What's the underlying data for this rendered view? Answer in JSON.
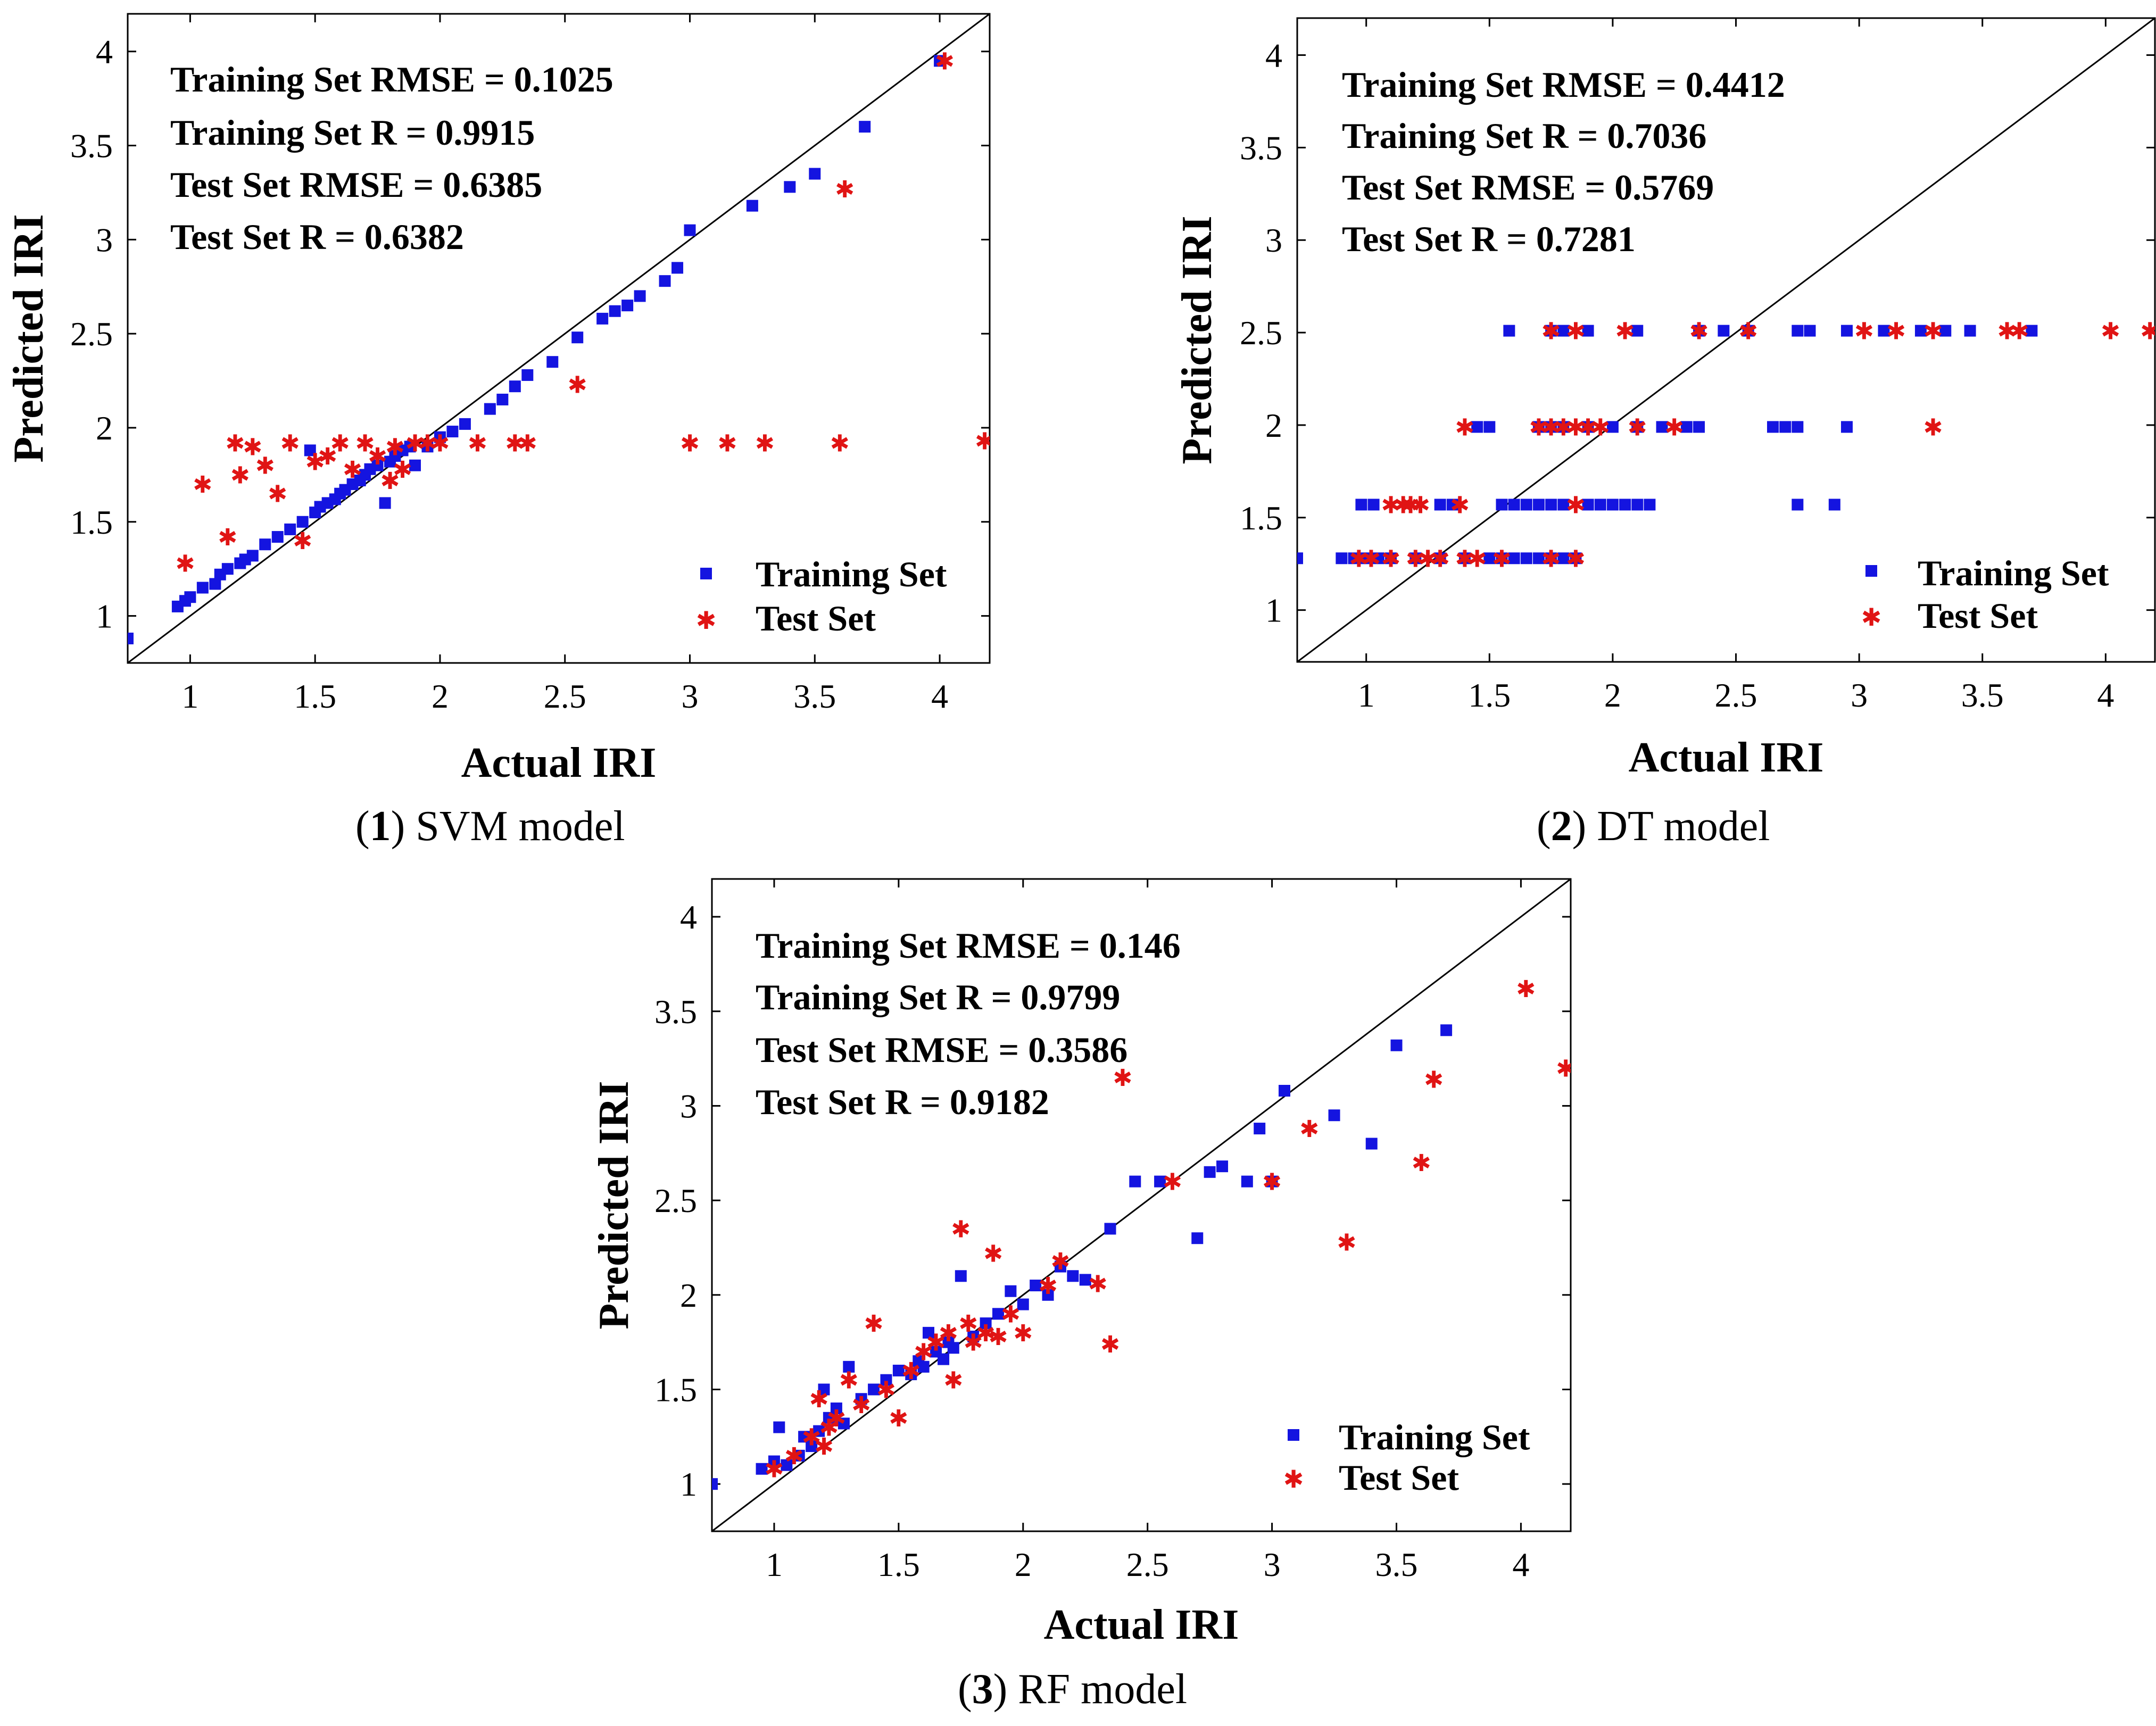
{
  "colors": {
    "training": "#1414e0",
    "test": "#e01414",
    "axis": "#000000"
  },
  "chart_data": [
    {
      "type": "scatter",
      "panel_number": "1",
      "panel_name": "SVM model",
      "xlabel": "Actual IRI",
      "ylabel": "Predicted IRI",
      "xlim": [
        0.75,
        4.2
      ],
      "ylim": [
        0.75,
        4.2
      ],
      "xticks": [
        1,
        1.5,
        2,
        2.5,
        3,
        3.5,
        4
      ],
      "xtick_labels": [
        "1",
        "1.5",
        "2",
        "2.5",
        "3",
        "3.5",
        "4"
      ],
      "yticks": [
        1,
        1.5,
        2,
        2.5,
        3,
        3.5,
        4
      ],
      "ytick_labels": [
        "1",
        "1.5",
        "2",
        "2.5",
        "3",
        "3.5",
        "4"
      ],
      "stats": [
        "Training Set RMSE = 0.1025",
        "Training Set R = 0.9915",
        "Test Set RMSE = 0.6385",
        "Test Set R = 0.6382"
      ],
      "legend": [
        "Training Set",
        "Test Set"
      ],
      "series": [
        {
          "name": "Training Set",
          "marker": "square",
          "x": [
            0.75,
            0.95,
            0.98,
            1.0,
            1.05,
            1.1,
            1.12,
            1.15,
            1.2,
            1.22,
            1.25,
            1.3,
            1.35,
            1.4,
            1.45,
            1.48,
            1.5,
            1.52,
            1.55,
            1.58,
            1.6,
            1.62,
            1.65,
            1.68,
            1.7,
            1.72,
            1.75,
            1.78,
            1.8,
            1.82,
            1.85,
            1.88,
            1.9,
            1.95,
            2.0,
            2.05,
            2.1,
            2.2,
            2.25,
            2.3,
            2.35,
            2.45,
            2.55,
            2.65,
            2.7,
            2.75,
            2.8,
            2.9,
            2.95,
            3.0,
            3.25,
            3.4,
            3.5,
            3.7,
            4.0
          ],
          "y": [
            0.88,
            1.05,
            1.08,
            1.1,
            1.15,
            1.17,
            1.22,
            1.25,
            1.28,
            1.3,
            1.32,
            1.38,
            1.42,
            1.46,
            1.5,
            1.88,
            1.55,
            1.58,
            1.6,
            1.62,
            1.65,
            1.67,
            1.7,
            1.72,
            1.75,
            1.78,
            1.8,
            1.6,
            1.82,
            1.85,
            1.88,
            1.9,
            1.8,
            1.9,
            1.95,
            1.98,
            2.02,
            2.1,
            2.15,
            2.22,
            2.28,
            2.35,
            2.48,
            2.58,
            2.62,
            2.65,
            2.7,
            2.78,
            2.85,
            3.05,
            3.18,
            3.28,
            3.35,
            3.6,
            3.95
          ]
        },
        {
          "name": "Test Set",
          "marker": "star",
          "x": [
            0.98,
            1.05,
            1.15,
            1.18,
            1.2,
            1.25,
            1.3,
            1.35,
            1.4,
            1.45,
            1.5,
            1.55,
            1.6,
            1.65,
            1.7,
            1.75,
            1.8,
            1.82,
            1.85,
            1.9,
            1.95,
            2.0,
            2.15,
            2.3,
            2.35,
            2.55,
            3.0,
            3.15,
            3.3,
            3.6,
            3.62,
            4.02,
            4.18
          ],
          "y": [
            1.28,
            1.7,
            1.42,
            1.92,
            1.75,
            1.9,
            1.8,
            1.65,
            1.92,
            1.4,
            1.82,
            1.85,
            1.92,
            1.78,
            1.92,
            1.85,
            1.72,
            1.9,
            1.78,
            1.92,
            1.92,
            1.92,
            1.92,
            1.92,
            1.92,
            2.23,
            1.92,
            1.92,
            1.92,
            1.92,
            3.27,
            3.95,
            1.93
          ]
        }
      ]
    },
    {
      "type": "scatter",
      "panel_number": "2",
      "panel_name": "DT model",
      "xlabel": "Actual IRI",
      "ylabel": "Predicted IRI",
      "xlim": [
        0.72,
        4.2
      ],
      "ylim": [
        0.72,
        4.2
      ],
      "xticks": [
        1,
        1.5,
        2,
        2.5,
        3,
        3.5,
        4
      ],
      "xtick_labels": [
        "1",
        "1.5",
        "2",
        "2.5",
        "3",
        "3.5",
        "4"
      ],
      "yticks": [
        1,
        1.5,
        2,
        2.5,
        3,
        3.5,
        4
      ],
      "ytick_labels": [
        "1",
        "1.5",
        "2",
        "2.5",
        "3",
        "3.5",
        "4"
      ],
      "stats": [
        "Training Set RMSE = 0.4412",
        "Training Set R = 0.7036",
        "Test Set RMSE = 0.5769",
        "Test Set R = 0.7281"
      ],
      "legend": [
        "Training Set",
        "Test Set"
      ],
      "series": [
        {
          "name": "Training Set",
          "marker": "square",
          "x": [
            0.72,
            0.9,
            0.95,
            1.0,
            1.05,
            1.1,
            1.2,
            1.3,
            1.4,
            1.5,
            1.55,
            1.6,
            1.65,
            1.7,
            1.75,
            1.8,
            1.85,
            0.98,
            1.03,
            1.3,
            1.35,
            1.55,
            1.6,
            1.65,
            1.7,
            1.75,
            1.8,
            1.9,
            1.95,
            2.0,
            2.05,
            2.1,
            2.15,
            1.45,
            1.5,
            1.7,
            1.75,
            1.8,
            1.9,
            2.0,
            2.1,
            2.2,
            2.3,
            2.35,
            2.65,
            2.7,
            2.75,
            2.95,
            1.58,
            1.75,
            1.8,
            1.9,
            2.1,
            2.35,
            2.45,
            2.55,
            2.75,
            2.8,
            2.95,
            3.1,
            3.25,
            3.35,
            3.45,
            3.7,
            2.75,
            2.9
          ],
          "y": [
            1.28,
            1.28,
            1.28,
            1.28,
            1.28,
            1.28,
            1.28,
            1.28,
            1.28,
            1.28,
            1.28,
            1.28,
            1.28,
            1.28,
            1.28,
            1.28,
            1.28,
            1.57,
            1.57,
            1.57,
            1.57,
            1.57,
            1.57,
            1.57,
            1.57,
            1.57,
            1.57,
            1.57,
            1.57,
            1.57,
            1.57,
            1.57,
            1.57,
            1.99,
            1.99,
            1.99,
            1.99,
            1.99,
            1.99,
            1.99,
            1.99,
            1.99,
            1.99,
            1.99,
            1.99,
            1.99,
            1.99,
            1.99,
            2.51,
            2.51,
            2.51,
            2.51,
            2.51,
            2.51,
            2.51,
            2.51,
            2.51,
            2.51,
            2.51,
            2.51,
            2.51,
            2.51,
            2.51,
            2.51,
            1.57,
            1.57
          ]
        },
        {
          "name": "Test Set",
          "marker": "star",
          "x": [
            0.97,
            1.02,
            1.1,
            1.2,
            1.25,
            1.3,
            1.4,
            1.45,
            1.55,
            1.75,
            1.85,
            1.1,
            1.15,
            1.18,
            1.22,
            1.38,
            1.85,
            1.4,
            1.7,
            1.75,
            1.8,
            1.85,
            1.9,
            1.95,
            2.1,
            2.25,
            3.3,
            1.75,
            1.85,
            2.05,
            2.35,
            2.55,
            3.02,
            3.15,
            3.3,
            3.6,
            3.65,
            4.02,
            4.18
          ],
          "y": [
            1.28,
            1.28,
            1.28,
            1.28,
            1.28,
            1.28,
            1.28,
            1.28,
            1.28,
            1.28,
            1.28,
            1.57,
            1.57,
            1.57,
            1.57,
            1.57,
            1.57,
            1.99,
            1.99,
            1.99,
            1.99,
            1.99,
            1.99,
            1.99,
            1.99,
            1.99,
            1.99,
            2.51,
            2.51,
            2.51,
            2.51,
            2.51,
            2.51,
            2.51,
            2.51,
            2.51,
            2.51,
            2.51,
            2.51
          ]
        }
      ]
    },
    {
      "type": "scatter",
      "panel_number": "3",
      "panel_name": "RF model",
      "xlabel": "Actual IRI",
      "ylabel": "Predicted IRI",
      "xlim": [
        0.75,
        4.2
      ],
      "ylim": [
        0.75,
        4.2
      ],
      "xticks": [
        1,
        1.5,
        2,
        2.5,
        3,
        3.5,
        4
      ],
      "xtick_labels": [
        "1",
        "1.5",
        "2",
        "2.5",
        "3",
        "3.5",
        "4"
      ],
      "yticks": [
        1,
        1.5,
        2,
        2.5,
        3,
        3.5,
        4
      ],
      "ytick_labels": [
        "1",
        "1.5",
        "2",
        "2.5",
        "3",
        "3.5",
        "4"
      ],
      "stats": [
        "Training Set RMSE = 0.146",
        "Training Set R = 0.9799",
        "Test Set RMSE = 0.3586",
        "Test Set R = 0.9182"
      ],
      "legend": [
        "Training Set",
        "Test Set"
      ],
      "series": [
        {
          "name": "Training Set",
          "marker": "square",
          "x": [
            0.75,
            0.95,
            1.0,
            1.02,
            1.05,
            1.1,
            1.12,
            1.15,
            1.18,
            1.2,
            1.22,
            1.25,
            1.28,
            1.3,
            1.35,
            1.4,
            1.45,
            1.5,
            1.55,
            1.58,
            1.6,
            1.62,
            1.65,
            1.68,
            1.7,
            1.72,
            1.75,
            1.8,
            1.85,
            1.9,
            1.95,
            2.0,
            2.05,
            2.1,
            2.15,
            2.2,
            2.25,
            2.35,
            2.45,
            2.55,
            2.7,
            2.75,
            2.8,
            2.9,
            2.95,
            3.0,
            3.05,
            3.25,
            3.4,
            3.5,
            3.7
          ],
          "y": [
            1.0,
            1.08,
            1.12,
            1.3,
            1.1,
            1.15,
            1.25,
            1.2,
            1.28,
            1.5,
            1.35,
            1.4,
            1.32,
            1.62,
            1.45,
            1.5,
            1.55,
            1.6,
            1.58,
            1.65,
            1.62,
            1.8,
            1.7,
            1.66,
            1.75,
            1.72,
            2.1,
            1.78,
            1.85,
            1.9,
            2.02,
            1.95,
            2.05,
            2.0,
            2.15,
            2.1,
            2.08,
            2.35,
            2.6,
            2.6,
            2.3,
            2.65,
            2.68,
            2.6,
            2.88,
            2.6,
            3.08,
            2.95,
            2.8,
            3.32,
            3.4
          ],
          "extra": true
        },
        {
          "name": "Test Set",
          "marker": "star",
          "x": [
            1.0,
            1.08,
            1.15,
            1.18,
            1.2,
            1.22,
            1.25,
            1.3,
            1.35,
            1.4,
            1.45,
            1.5,
            1.55,
            1.6,
            1.65,
            1.7,
            1.72,
            1.75,
            1.78,
            1.8,
            1.85,
            1.88,
            1.9,
            1.95,
            2.0,
            2.1,
            2.15,
            2.3,
            2.35,
            2.4,
            2.6,
            3.0,
            3.15,
            3.3,
            3.6,
            3.65,
            4.02,
            4.18
          ],
          "y": [
            1.08,
            1.15,
            1.25,
            1.45,
            1.2,
            1.3,
            1.35,
            1.55,
            1.42,
            1.85,
            1.5,
            1.35,
            1.6,
            1.7,
            1.75,
            1.8,
            1.55,
            2.35,
            1.85,
            1.75,
            1.8,
            2.22,
            1.78,
            1.9,
            1.8,
            2.05,
            2.18,
            2.06,
            1.74,
            3.15,
            2.6,
            2.6,
            2.88,
            2.28,
            2.7,
            3.14,
            3.62,
            3.2
          ]
        }
      ]
    }
  ]
}
